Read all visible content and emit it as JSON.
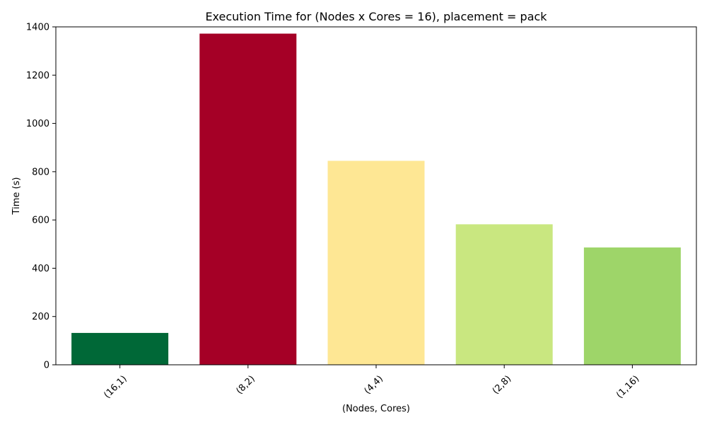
{
  "chart_data": {
    "type": "bar",
    "title": "Execution Time for (Nodes x Cores = 16), placement = pack",
    "xlabel": "(Nodes, Cores)",
    "ylabel": "Time (s)",
    "ylim": [
      0,
      1400
    ],
    "yticks": [
      0,
      200,
      400,
      600,
      800,
      1000,
      1200,
      1400
    ],
    "categories": [
      "(16,1)",
      "(8,2)",
      "(4,4)",
      "(2,8)",
      "(1,16)"
    ],
    "values": [
      132,
      1372,
      845,
      582,
      486
    ],
    "colors": [
      "#006837",
      "#a50026",
      "#fee794",
      "#c9e780",
      "#9ed569"
    ],
    "grid": false,
    "legend": "none"
  }
}
